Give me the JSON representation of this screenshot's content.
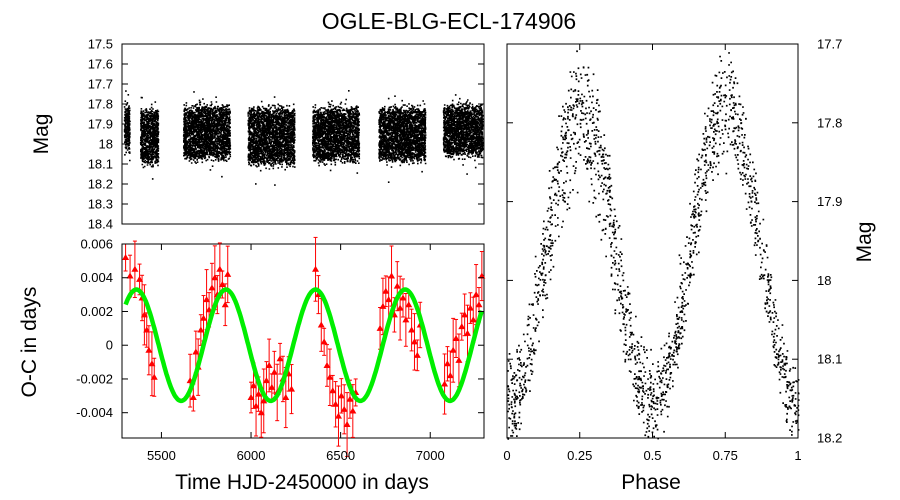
{
  "chart_data": [
    {
      "id": "lc",
      "type": "scatter",
      "title": "OGLE-BLG-ECL-174906",
      "xlabel": "",
      "ylabel": "Mag",
      "xlim": [
        5280,
        7300
      ],
      "ylim": [
        18.4,
        17.5
      ],
      "y_inverted": true,
      "yticks": [
        "17.5",
        "17.6",
        "17.7",
        "17.8",
        "17.9",
        "18",
        "18.1",
        "18.2",
        "18.3",
        "18.4"
      ],
      "marker_color": "#000000",
      "seasons": [
        {
          "x_start": 5290,
          "x_end": 5320,
          "mag_center": 17.92,
          "mag_half_range": 0.11
        },
        {
          "x_start": 5380,
          "x_end": 5480,
          "mag_center": 17.96,
          "mag_half_range": 0.14
        },
        {
          "x_start": 5620,
          "x_end": 5880,
          "mag_center": 17.94,
          "mag_half_range": 0.14
        },
        {
          "x_start": 5980,
          "x_end": 6240,
          "mag_center": 17.96,
          "mag_half_range": 0.15
        },
        {
          "x_start": 6340,
          "x_end": 6600,
          "mag_center": 17.95,
          "mag_half_range": 0.14
        },
        {
          "x_start": 6710,
          "x_end": 6970,
          "mag_center": 17.95,
          "mag_half_range": 0.14
        },
        {
          "x_start": 7070,
          "x_end": 7290,
          "mag_center": 17.93,
          "mag_half_range": 0.13
        }
      ]
    },
    {
      "id": "oc",
      "type": "scatter",
      "xlabel": "Time HJD-2450000 in days",
      "ylabel": "O-C in days",
      "xlim": [
        5280,
        7300
      ],
      "ylim": [
        -0.0055,
        0.006
      ],
      "xticks": [
        "5500",
        "6000",
        "6500",
        "7000"
      ],
      "yticks": [
        "0.006",
        "0.004",
        "0.002",
        "0",
        "-0.002",
        "-0.004"
      ],
      "points_color": "#ff0000",
      "fit_color": "#00ee00",
      "points": [
        [
          5300,
          0.0052
        ],
        [
          5325,
          0.0041
        ],
        [
          5352,
          0.0045
        ],
        [
          5378,
          0.0039
        ],
        [
          5392,
          0.0028
        ],
        [
          5405,
          0.0018
        ],
        [
          5418,
          0.0009
        ],
        [
          5430,
          -0.0003
        ],
        [
          5447,
          -0.0011
        ],
        [
          5460,
          -0.0019
        ],
        [
          5660,
          -0.0021
        ],
        [
          5678,
          -0.0031
        ],
        [
          5692,
          -0.0004
        ],
        [
          5705,
          -0.0013
        ],
        [
          5720,
          0.0009
        ],
        [
          5735,
          0.0016
        ],
        [
          5752,
          0.0027
        ],
        [
          5766,
          0.0021
        ],
        [
          5782,
          0.0034
        ],
        [
          5798,
          0.004
        ],
        [
          5812,
          0.003
        ],
        [
          5826,
          0.0045
        ],
        [
          5840,
          0.0036
        ],
        [
          5856,
          0.0024
        ],
        [
          5870,
          0.0042
        ],
        [
          6000,
          -0.0031
        ],
        [
          6014,
          -0.0024
        ],
        [
          6028,
          -0.0036
        ],
        [
          6042,
          -0.0029
        ],
        [
          6057,
          -0.004
        ],
        [
          6071,
          -0.0033
        ],
        [
          6086,
          -0.0021
        ],
        [
          6101,
          -0.0012
        ],
        [
          6116,
          -0.0025
        ],
        [
          6130,
          -0.0016
        ],
        [
          6146,
          -0.0028
        ],
        [
          6162,
          -0.0008
        ],
        [
          6178,
          -0.002
        ],
        [
          6194,
          -0.0031
        ],
        [
          6210,
          -0.0017
        ],
        [
          6226,
          -0.0026
        ],
        [
          6360,
          0.0045
        ],
        [
          6376,
          0.003
        ],
        [
          6392,
          0.0012
        ],
        [
          6408,
          0.0002
        ],
        [
          6424,
          -0.0012
        ],
        [
          6440,
          -0.0019
        ],
        [
          6456,
          -0.0027
        ],
        [
          6472,
          -0.0035
        ],
        [
          6488,
          -0.0042
        ],
        [
          6504,
          -0.003
        ],
        [
          6520,
          -0.0038
        ],
        [
          6536,
          -0.0047
        ],
        [
          6552,
          -0.0032
        ],
        [
          6568,
          -0.0039
        ],
        [
          6584,
          -0.0028
        ],
        [
          6720,
          0.001
        ],
        [
          6736,
          0.0023
        ],
        [
          6752,
          0.0032
        ],
        [
          6768,
          0.0027
        ],
        [
          6784,
          0.0041
        ],
        [
          6800,
          0.0018
        ],
        [
          6816,
          0.0035
        ],
        [
          6832,
          0.0022
        ],
        [
          6848,
          0.0028
        ],
        [
          6864,
          0.0015
        ],
        [
          6880,
          0.0024
        ],
        [
          6896,
          0.0009
        ],
        [
          6912,
          0.0002
        ],
        [
          6928,
          -0.0006
        ],
        [
          6944,
          0.0012
        ],
        [
          7080,
          -0.0023
        ],
        [
          7096,
          -0.0011
        ],
        [
          7112,
          -0.0018
        ],
        [
          7128,
          -0.0003
        ],
        [
          7144,
          0.0004
        ],
        [
          7160,
          -0.0009
        ],
        [
          7176,
          0.0011
        ],
        [
          7192,
          0.0018
        ],
        [
          7208,
          0.0007
        ],
        [
          7224,
          0.0022
        ],
        [
          7240,
          0.0015
        ],
        [
          7256,
          0.003
        ],
        [
          7272,
          0.0024
        ],
        [
          7288,
          0.0041
        ]
      ],
      "fit": {
        "model": "sinusoid",
        "offset": 0.0,
        "amplitude": 0.0033,
        "period_days": 500,
        "phase_zero_day": 5235,
        "x_range": [
          5300,
          7290
        ]
      }
    },
    {
      "id": "ph",
      "type": "scatter",
      "xlabel": "Phase",
      "ylabel": "Mag",
      "xlim": [
        0,
        1
      ],
      "ylim": [
        18.2,
        17.7
      ],
      "y_inverted": true,
      "xticks": [
        "0",
        "0.25",
        "0.5",
        "0.75",
        "1"
      ],
      "yticks": [
        "17.7",
        "17.8",
        "17.9",
        "18",
        "18.1",
        "18.2"
      ],
      "marker_color": "#000000",
      "model": {
        "max_mag": 17.77,
        "primary_min_mag": 18.15,
        "secondary_min_mag": 18.15,
        "band_width_mag": 0.06,
        "lower_branch_offset_mag": 0.07
      }
    }
  ]
}
